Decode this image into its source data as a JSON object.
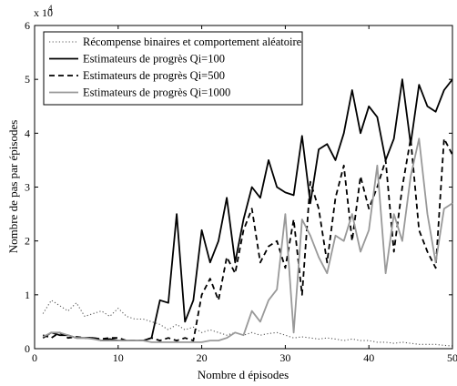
{
  "chart_data": {
    "type": "line",
    "title": "",
    "xlabel": "Nombre d épisodes",
    "ylabel": "Nombre de pas par épisodes",
    "y_multiplier_label": "x 10",
    "y_multiplier_exp": "4",
    "xlim": [
      0,
      50
    ],
    "ylim": [
      0,
      6
    ],
    "x_ticks": [
      0,
      10,
      20,
      30,
      40,
      50
    ],
    "y_ticks": [
      0,
      1,
      2,
      3,
      4,
      5,
      6
    ],
    "grid": false,
    "legend_position": "top-left",
    "x": [
      1,
      2,
      3,
      4,
      5,
      6,
      7,
      8,
      9,
      10,
      11,
      12,
      13,
      14,
      15,
      16,
      17,
      18,
      19,
      20,
      21,
      22,
      23,
      24,
      25,
      26,
      27,
      28,
      29,
      30,
      31,
      32,
      33,
      34,
      35,
      36,
      37,
      38,
      39,
      40,
      41,
      42,
      43,
      44,
      45,
      46,
      47,
      48,
      49,
      50
    ],
    "series": [
      {
        "name": "Récompense binaires et comportement aléatoire",
        "color": "#555555",
        "style": "dotted",
        "values": [
          0.65,
          0.9,
          0.8,
          0.7,
          0.85,
          0.6,
          0.65,
          0.7,
          0.6,
          0.75,
          0.6,
          0.55,
          0.55,
          0.5,
          0.45,
          0.35,
          0.45,
          0.35,
          0.4,
          0.3,
          0.35,
          0.3,
          0.25,
          0.3,
          0.25,
          0.3,
          0.25,
          0.28,
          0.3,
          0.25,
          0.2,
          0.22,
          0.2,
          0.18,
          0.2,
          0.18,
          0.15,
          0.18,
          0.15,
          0.15,
          0.12,
          0.12,
          0.1,
          0.12,
          0.1,
          0.08,
          0.08,
          0.08,
          0.06,
          0.05
        ]
      },
      {
        "name": "Estimateurs de progrès Qi=100",
        "color": "#000000",
        "style": "solid",
        "values": [
          0.2,
          0.3,
          0.25,
          0.25,
          0.2,
          0.2,
          0.2,
          0.15,
          0.18,
          0.15,
          0.15,
          0.15,
          0.15,
          0.2,
          0.9,
          0.85,
          2.5,
          0.5,
          0.9,
          2.2,
          1.6,
          2.0,
          2.8,
          1.6,
          2.4,
          3.0,
          2.8,
          3.5,
          3.0,
          2.9,
          2.85,
          3.95,
          2.7,
          3.7,
          3.8,
          3.5,
          4.0,
          4.8,
          4.0,
          4.5,
          4.3,
          3.5,
          3.9,
          5.0,
          3.8,
          4.9,
          4.5,
          4.4,
          4.8,
          5.0
        ]
      },
      {
        "name": "Estimateurs de progrès Qi=500",
        "color": "#000000",
        "style": "dashed",
        "values": [
          0.25,
          0.2,
          0.3,
          0.2,
          0.22,
          0.2,
          0.2,
          0.18,
          0.2,
          0.2,
          0.15,
          0.15,
          0.15,
          0.2,
          0.15,
          0.2,
          0.15,
          0.2,
          0.15,
          1.0,
          1.3,
          0.9,
          1.7,
          1.4,
          2.2,
          2.6,
          1.6,
          1.9,
          2.0,
          1.5,
          2.4,
          1.0,
          3.1,
          2.6,
          1.6,
          2.8,
          3.4,
          2.0,
          3.2,
          2.6,
          3.0,
          3.5,
          1.8,
          3.0,
          3.9,
          2.2,
          1.8,
          1.5,
          3.9,
          3.6
        ]
      },
      {
        "name": "Estimateurs de progrès Qi=1000",
        "color": "#999999",
        "style": "solid",
        "values": [
          0.22,
          0.3,
          0.3,
          0.25,
          0.2,
          0.2,
          0.18,
          0.15,
          0.15,
          0.15,
          0.15,
          0.15,
          0.15,
          0.12,
          0.12,
          0.12,
          0.12,
          0.12,
          0.12,
          0.12,
          0.15,
          0.15,
          0.2,
          0.3,
          0.25,
          0.7,
          0.5,
          0.9,
          1.1,
          2.5,
          0.3,
          2.4,
          2.1,
          1.7,
          1.4,
          2.1,
          2.0,
          2.5,
          1.8,
          2.2,
          3.4,
          1.4,
          2.5,
          2.0,
          3.2,
          3.9,
          2.5,
          1.6,
          2.6,
          2.7
        ]
      }
    ]
  }
}
